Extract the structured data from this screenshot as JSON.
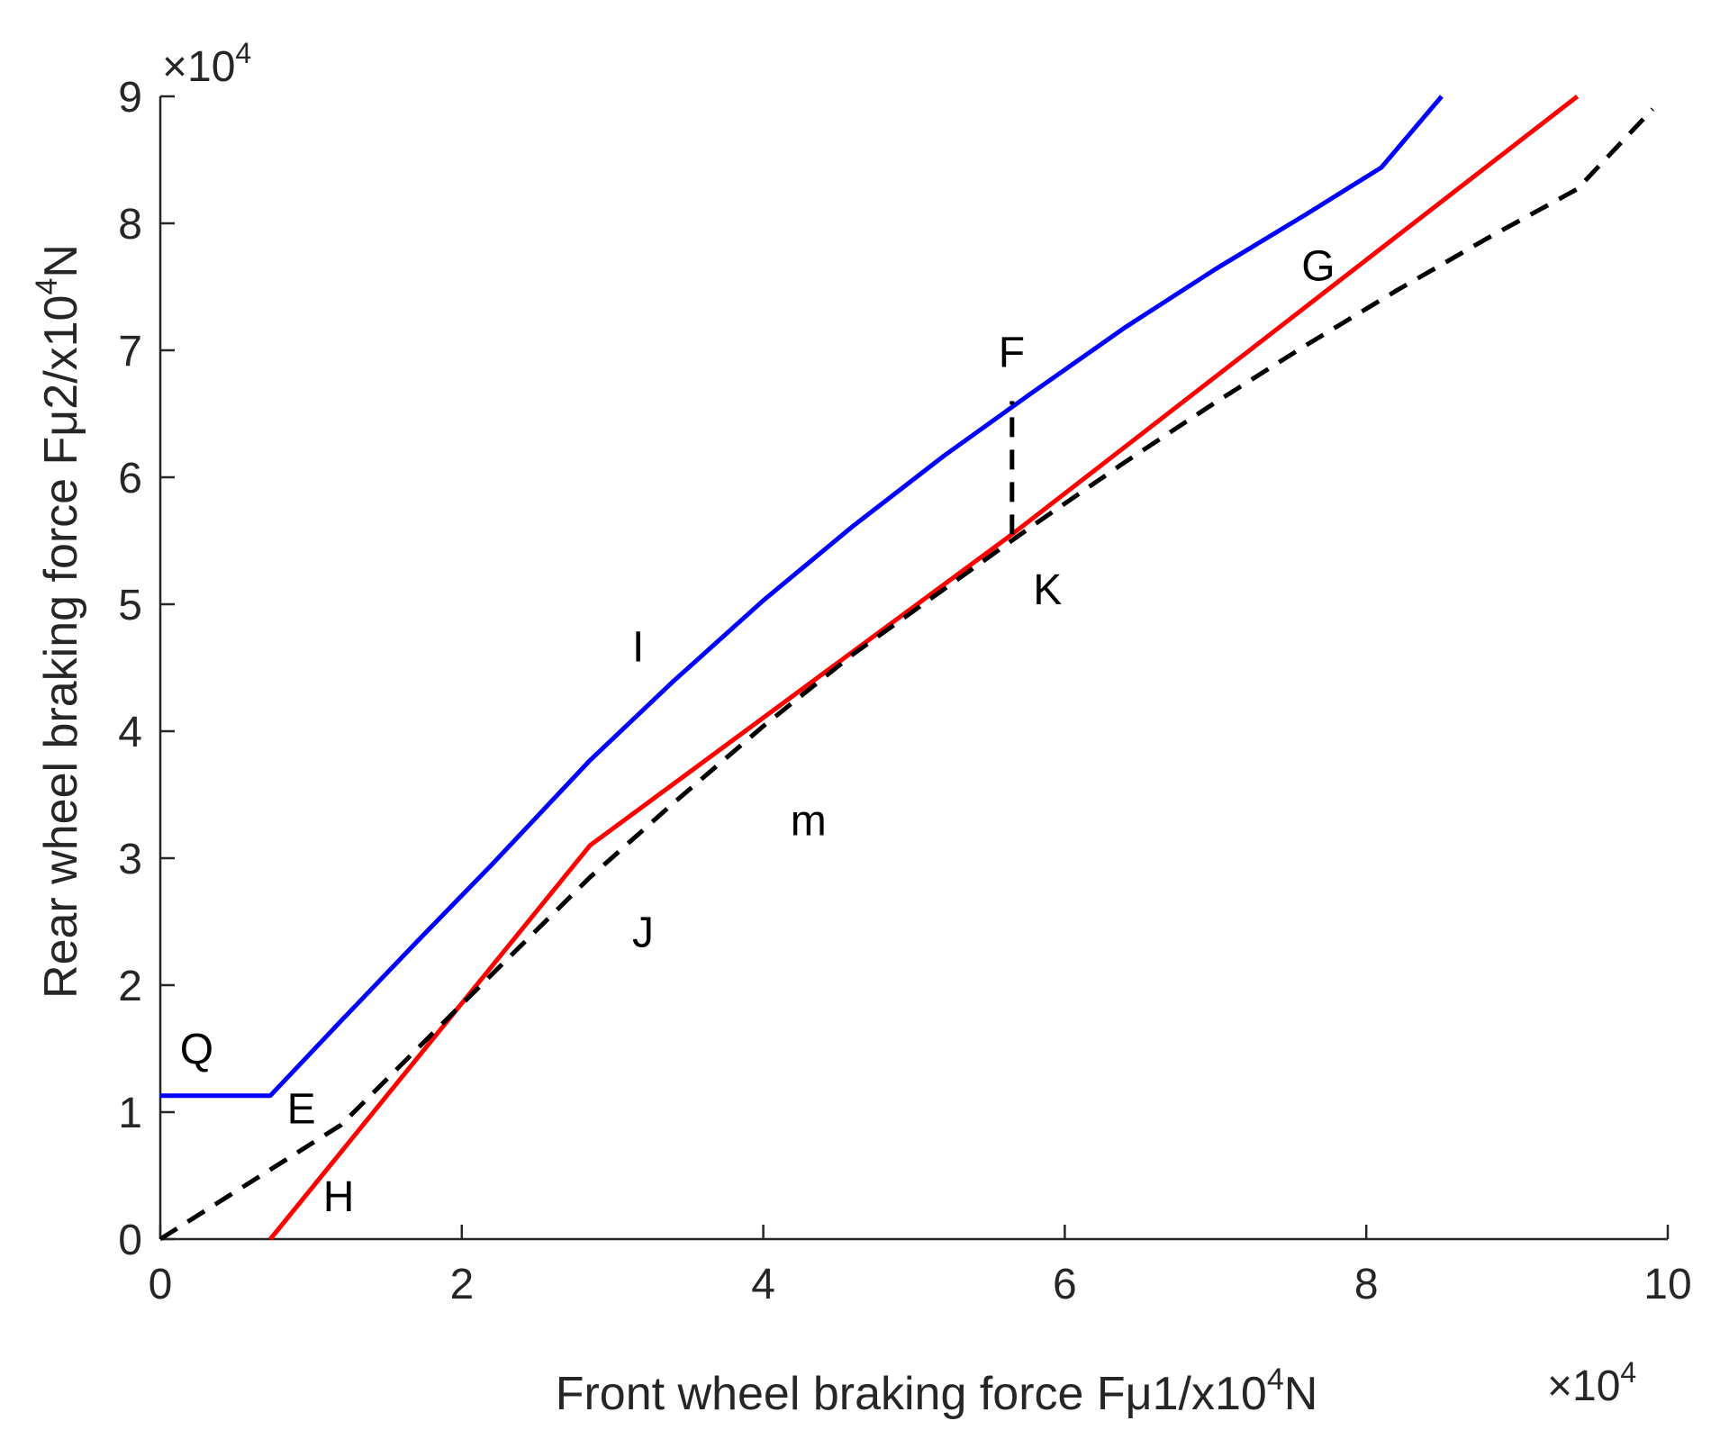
{
  "chart_data": {
    "type": "line",
    "title": "",
    "xlabel": "Front wheel braking force Fμ1/x10",
    "xlabel_sup": "4",
    "xlabel_suffix": "N",
    "ylabel": "Rear wheel braking force Fμ2/x10",
    "ylabel_sup": "4",
    "ylabel_suffix": "N",
    "x_multiplier": {
      "prefix": "×10",
      "exp": "4"
    },
    "y_multiplier": {
      "prefix": "×10",
      "exp": "4"
    },
    "xlim": [
      0,
      100000
    ],
    "ylim": [
      0,
      90000
    ],
    "x_scale": 10000,
    "y_scale": 10000,
    "xticks": [
      0,
      20000,
      40000,
      60000,
      80000,
      100000
    ],
    "xtick_labels": [
      "0",
      "2",
      "4",
      "6",
      "8",
      "10"
    ],
    "yticks": [
      0,
      10000,
      20000,
      30000,
      40000,
      50000,
      60000,
      70000,
      80000,
      90000
    ],
    "ytick_labels": [
      "0",
      "1",
      "2",
      "3",
      "4",
      "5",
      "6",
      "7",
      "8",
      "9"
    ],
    "grid": false,
    "series": [
      {
        "color": "#0000ff",
        "dash": "solid",
        "x": [
          0,
          7300,
          12000,
          17000,
          22000,
          28500,
          34000,
          40000,
          46000,
          52000,
          58000,
          64000,
          70000,
          76000,
          81000,
          85000
        ],
        "y": [
          11300,
          11300,
          17200,
          23400,
          29500,
          37700,
          43900,
          50300,
          56200,
          61700,
          66800,
          71800,
          76400,
          80700,
          84400,
          90000
        ]
      },
      {
        "color": "#ff0000",
        "dash": "solid",
        "x": [
          7300,
          28500,
          56500,
          94000
        ],
        "y": [
          0,
          31000,
          55500,
          90000
        ]
      },
      {
        "color": "#000000",
        "dash": "dashed",
        "x": [
          0,
          12000,
          20000,
          28500,
          34000,
          40000,
          46000,
          52000,
          58000,
          64000,
          70000,
          76000,
          82000,
          88000,
          94000,
          99000
        ],
        "y": [
          0,
          9000,
          18500,
          28500,
          34300,
          40400,
          46100,
          51200,
          56300,
          61200,
          65900,
          70400,
          74700,
          78800,
          82700,
          89000
        ]
      },
      {
        "color": "#000000",
        "dash": "dashed",
        "x": [
          56500,
          56500
        ],
        "y": [
          55500,
          66000
        ]
      }
    ],
    "annotations": [
      {
        "text": "Q",
        "x": 1300,
        "y": 13800
      },
      {
        "text": "E",
        "x": 8400,
        "y": 9100
      },
      {
        "text": "H",
        "x": 10800,
        "y": 2200
      },
      {
        "text": "I",
        "x": 31300,
        "y": 45500
      },
      {
        "text": "J",
        "x": 31300,
        "y": 23000
      },
      {
        "text": "m",
        "x": 41800,
        "y": 31800
      },
      {
        "text": "F",
        "x": 55600,
        "y": 68700
      },
      {
        "text": "K",
        "x": 57900,
        "y": 50000
      },
      {
        "text": "G",
        "x": 75700,
        "y": 75500
      }
    ]
  }
}
